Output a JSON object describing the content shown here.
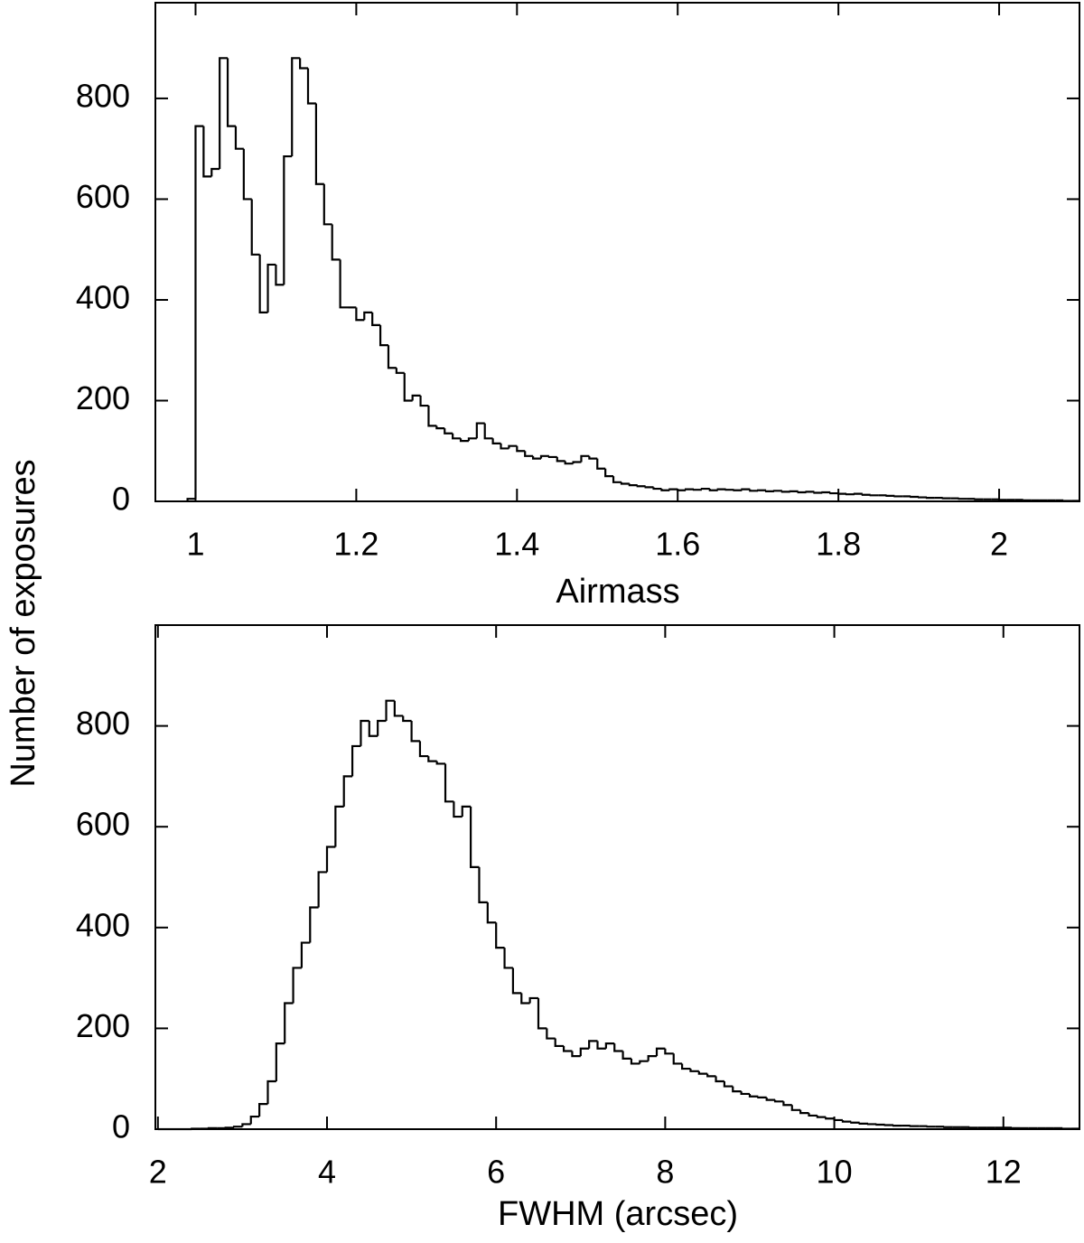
{
  "chart_data": [
    {
      "type": "histogram",
      "xlabel": "Airmass",
      "ylabel": "Number of exposures",
      "xlim": [
        0.95,
        2.1
      ],
      "ylim": [
        0,
        990
      ],
      "xticks": [
        1,
        1.2,
        1.4,
        1.6,
        1.8,
        2
      ],
      "yticks": [
        0,
        200,
        400,
        600,
        800
      ],
      "color": "#000000",
      "bins": [
        0.99,
        1.0,
        1.01,
        1.02,
        1.03,
        1.04,
        1.05,
        1.06,
        1.07,
        1.08,
        1.09,
        1.1,
        1.11,
        1.12,
        1.13,
        1.14,
        1.15,
        1.16,
        1.17,
        1.18,
        1.19,
        1.2,
        1.21,
        1.22,
        1.23,
        1.24,
        1.25,
        1.26,
        1.27,
        1.28,
        1.29,
        1.3,
        1.31,
        1.32,
        1.33,
        1.34,
        1.35,
        1.36,
        1.37,
        1.38,
        1.39,
        1.4,
        1.41,
        1.42,
        1.43,
        1.44,
        1.45,
        1.46,
        1.47,
        1.48,
        1.49,
        1.5,
        1.51,
        1.52,
        1.53,
        1.54,
        1.55,
        1.56,
        1.57,
        1.58,
        1.59,
        1.6,
        1.61,
        1.62,
        1.63,
        1.64,
        1.65,
        1.66,
        1.67,
        1.68,
        1.69,
        1.7,
        1.71,
        1.72,
        1.73,
        1.74,
        1.75,
        1.76,
        1.77,
        1.78,
        1.79,
        1.8,
        1.81,
        1.82,
        1.83,
        1.84,
        1.85,
        1.86,
        1.87,
        1.88,
        1.89,
        1.9,
        1.91,
        1.92,
        1.93,
        1.94,
        1.95,
        1.96,
        1.97,
        1.98,
        1.99,
        2.0,
        2.01,
        2.02,
        2.03,
        2.04,
        2.05,
        2.06,
        2.07,
        2.08,
        2.09,
        2.1
      ],
      "values": [
        5,
        745,
        645,
        660,
        880,
        745,
        700,
        600,
        490,
        375,
        470,
        430,
        685,
        880,
        860,
        790,
        630,
        550,
        480,
        385,
        385,
        360,
        375,
        350,
        310,
        265,
        255,
        200,
        210,
        190,
        150,
        145,
        135,
        125,
        120,
        125,
        155,
        125,
        115,
        105,
        110,
        100,
        90,
        85,
        90,
        88,
        80,
        75,
        78,
        90,
        85,
        65,
        50,
        38,
        35,
        32,
        30,
        28,
        25,
        22,
        24,
        22,
        24,
        23,
        25,
        22,
        24,
        23,
        22,
        24,
        21,
        22,
        20,
        21,
        19,
        20,
        18,
        19,
        17,
        18,
        16,
        15,
        14,
        15,
        13,
        12,
        12,
        11,
        10,
        10,
        9,
        8,
        7,
        7,
        6,
        6,
        5,
        5,
        4,
        4,
        4,
        3,
        3,
        3,
        2,
        2,
        2,
        2,
        2,
        1,
        1
      ]
    },
    {
      "type": "histogram",
      "xlabel": "FWHM (arcsec)",
      "xlim": [
        1.97,
        12.9
      ],
      "ylim": [
        0,
        1000
      ],
      "xticks": [
        2,
        4,
        6,
        8,
        10,
        12
      ],
      "yticks": [
        0,
        200,
        400,
        600,
        800
      ],
      "color": "#000000",
      "bins": [
        2.0,
        2.1,
        2.2,
        2.3,
        2.4,
        2.5,
        2.6,
        2.7,
        2.8,
        2.9,
        3.0,
        3.1,
        3.2,
        3.3,
        3.4,
        3.5,
        3.6,
        3.7,
        3.8,
        3.9,
        4.0,
        4.1,
        4.2,
        4.3,
        4.4,
        4.5,
        4.6,
        4.7,
        4.8,
        4.9,
        5.0,
        5.1,
        5.2,
        5.3,
        5.4,
        5.5,
        5.6,
        5.7,
        5.8,
        5.9,
        6.0,
        6.1,
        6.2,
        6.3,
        6.4,
        6.5,
        6.6,
        6.7,
        6.8,
        6.9,
        7.0,
        7.1,
        7.2,
        7.3,
        7.4,
        7.5,
        7.6,
        7.7,
        7.8,
        7.9,
        8.0,
        8.1,
        8.2,
        8.3,
        8.4,
        8.5,
        8.6,
        8.7,
        8.8,
        8.9,
        9.0,
        9.1,
        9.2,
        9.3,
        9.4,
        9.5,
        9.6,
        9.7,
        9.8,
        9.9,
        10.0,
        10.1,
        10.2,
        10.3,
        10.4,
        10.5,
        10.6,
        10.7,
        10.8,
        10.9,
        11.0,
        11.1,
        11.2,
        11.3,
        11.4,
        11.5,
        11.6,
        11.7,
        11.8,
        11.9,
        12.0,
        12.1,
        12.2,
        12.3,
        12.4,
        12.5,
        12.6,
        12.7,
        12.8,
        12.9
      ],
      "values": [
        0,
        0,
        0,
        0,
        1,
        1,
        2,
        2,
        3,
        5,
        10,
        25,
        50,
        95,
        170,
        250,
        320,
        370,
        440,
        510,
        560,
        640,
        700,
        760,
        810,
        780,
        810,
        850,
        820,
        810,
        770,
        740,
        730,
        725,
        650,
        620,
        640,
        520,
        450,
        410,
        360,
        320,
        270,
        250,
        260,
        200,
        180,
        165,
        155,
        145,
        160,
        175,
        160,
        170,
        155,
        140,
        130,
        135,
        145,
        160,
        150,
        130,
        120,
        115,
        110,
        105,
        95,
        85,
        75,
        70,
        65,
        63,
        58,
        55,
        48,
        38,
        32,
        27,
        24,
        21,
        18,
        15,
        13,
        11,
        10,
        9,
        8,
        7,
        7,
        6,
        6,
        5,
        5,
        4,
        4,
        4,
        3,
        3,
        3,
        3,
        3,
        2,
        2,
        2,
        2,
        2,
        2,
        1,
        1
      ]
    }
  ]
}
